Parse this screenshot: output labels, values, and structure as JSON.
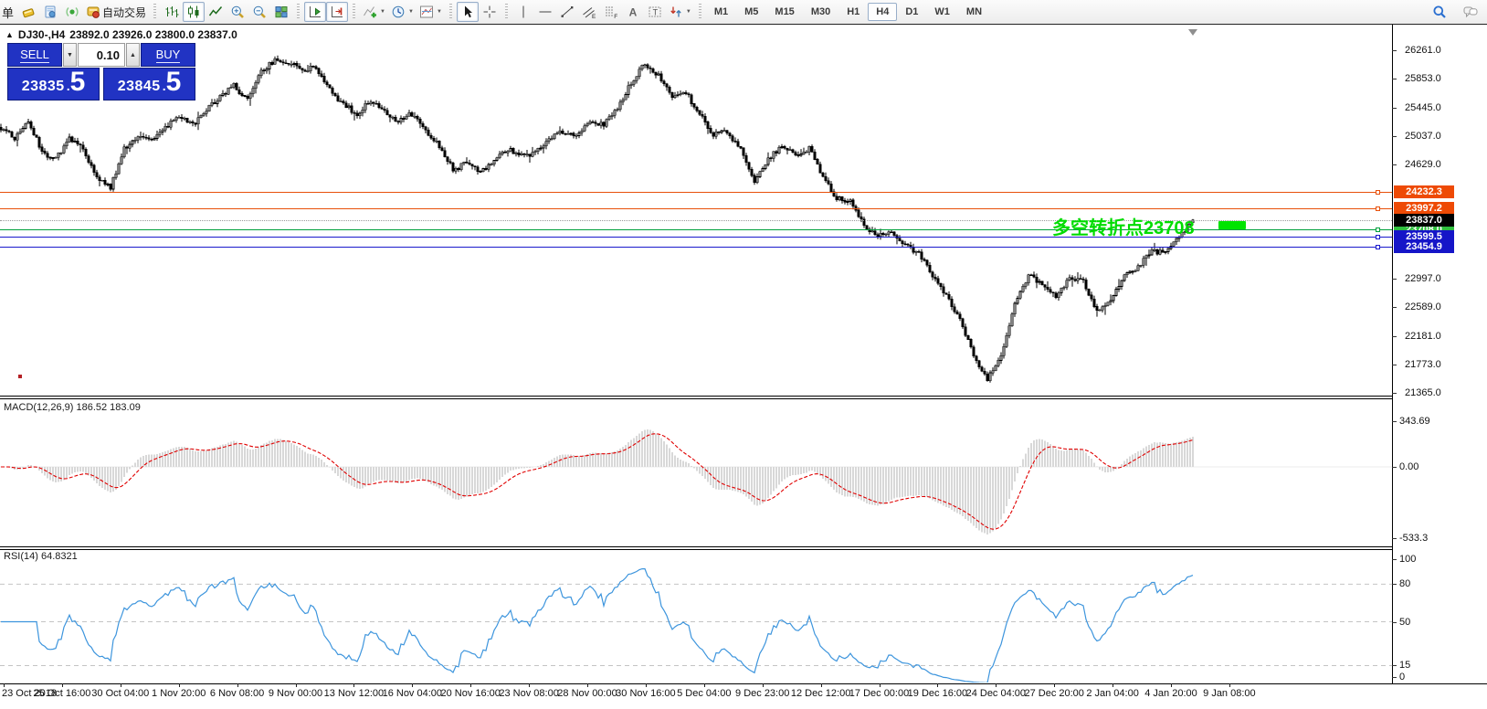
{
  "toolbar": {
    "partial_label": "单",
    "groups": [
      {
        "items": [
          {
            "icon": "new-order-icon",
            "name": "new-order"
          },
          {
            "icon": "profile-icon",
            "name": "profile"
          },
          {
            "icon": "signal-icon",
            "name": "signals"
          },
          {
            "icon": "autotrade-icon",
            "name": "autotrading",
            "label": "自动交易"
          }
        ]
      },
      {
        "items": [
          {
            "icon": "bar-chart-icon",
            "name": "bar-chart"
          },
          {
            "icon": "candle-chart-icon",
            "name": "candle-chart",
            "pressed": true
          },
          {
            "icon": "line-chart-icon",
            "name": "line-chart"
          },
          {
            "icon": "zoom-in-icon",
            "name": "zoom-in"
          },
          {
            "icon": "zoom-out-icon",
            "name": "zoom-out"
          },
          {
            "icon": "tile-windows-icon",
            "name": "tile-windows"
          }
        ]
      },
      {
        "items": [
          {
            "icon": "auto-scroll-icon",
            "name": "auto-scroll",
            "pressed": true
          },
          {
            "icon": "chart-shift-icon",
            "name": "chart-shift",
            "pressed": true
          }
        ]
      },
      {
        "items": [
          {
            "icon": "add-indicator-icon",
            "name": "indicators-menu",
            "dd": true
          },
          {
            "icon": "period-icon",
            "name": "periods-menu",
            "dd": true
          },
          {
            "icon": "template-icon",
            "name": "templates-menu",
            "dd": true
          }
        ]
      },
      {
        "items": [
          {
            "icon": "cursor-icon",
            "name": "cursor-tool",
            "pressed": true
          },
          {
            "icon": "crosshair-icon",
            "name": "crosshair-tool"
          }
        ]
      },
      {
        "items": [
          {
            "icon": "vertical-line-icon",
            "name": "vertical-line-tool"
          },
          {
            "icon": "horizontal-line-icon",
            "name": "horizontal-line-tool"
          },
          {
            "icon": "trendline-icon",
            "name": "trendline-tool"
          },
          {
            "icon": "channel-icon",
            "name": "equidistant-channel-tool"
          },
          {
            "icon": "fibonacci-icon",
            "name": "fibonacci-tool"
          },
          {
            "icon": "text-icon",
            "name": "text-tool"
          },
          {
            "icon": "label-icon",
            "name": "text-label-tool"
          },
          {
            "icon": "arrows-icon",
            "name": "arrows-tool",
            "dd": true
          }
        ]
      }
    ],
    "timeframes": [
      {
        "label": "M1"
      },
      {
        "label": "M5"
      },
      {
        "label": "M15"
      },
      {
        "label": "M30"
      },
      {
        "label": "H1"
      },
      {
        "label": "H4",
        "active": true
      },
      {
        "label": "D1"
      },
      {
        "label": "W1"
      },
      {
        "label": "MN"
      }
    ],
    "right_icons": [
      {
        "icon": "search-icon",
        "name": "search-symbols"
      },
      {
        "icon": "chat-icon",
        "name": "community-chat"
      }
    ]
  },
  "chart": {
    "title": {
      "marker": "▲",
      "symbol": "DJ30-,H4",
      "ohlc": "23892.0 23926.0 23800.0 23837.0"
    },
    "trade_panel": {
      "sell_label": "SELL",
      "buy_label": "BUY",
      "volume": "0.10",
      "sell_price_main": "23835",
      "sell_price_dot": ".",
      "sell_price_big": "5",
      "buy_price_main": "23845",
      "buy_price_dot": ".",
      "buy_price_big": "5",
      "step_down": "▼",
      "step_up": "▲"
    },
    "annotation": {
      "text": "多空转折点23708",
      "color": "#00dc00",
      "block_color": "#00e400"
    },
    "price_axis_ticks": [
      "26261.0",
      "25853.0",
      "25445.0",
      "25037.0",
      "24629.0",
      "22997.0",
      "22589.0",
      "22181.0",
      "21773.0",
      "21365.0"
    ],
    "price_axis_tick_values": [
      26261.0,
      25853.0,
      25445.0,
      25037.0,
      24629.0,
      22997.0,
      22589.0,
      22181.0,
      21773.0,
      21365.0
    ],
    "partial_tick": {
      "label": "23405.0",
      "value": 23405.0
    },
    "hlines": [
      {
        "label": "24232.3",
        "value": 24232.3,
        "line": "#e8500a",
        "badge": "#ee4a05"
      },
      {
        "label": "23997.2",
        "value": 23997.2,
        "line": "#e8500a",
        "badge": "#ee4a05"
      },
      {
        "label": "23708.0",
        "value": 23708.0,
        "line": "#00a03c",
        "badge": "#2fbf3f"
      },
      {
        "label": "23599.5",
        "value": 23599.5,
        "line": "#1a1acc",
        "badge": "#1515c8"
      },
      {
        "label": "23454.9",
        "value": 23454.9,
        "line": "#1a1acc",
        "badge": "#1515c8"
      }
    ],
    "current_price": {
      "label": "23837.0",
      "value": 23837.0,
      "badge": "#000000"
    }
  },
  "macd": {
    "label": "MACD(12,26,9) 186.52 183.09",
    "axis": [
      {
        "label": "343.69",
        "value": 343.69
      },
      {
        "label": "0.00",
        "value": 0.0
      },
      {
        "label": "-533.3",
        "value": -533.3
      }
    ]
  },
  "rsi": {
    "label": "RSI(14) 64.8321",
    "axis": [
      {
        "label": "100",
        "value": 100
      },
      {
        "label": "80",
        "value": 80
      },
      {
        "label": "50",
        "value": 50
      },
      {
        "label": "15",
        "value": 15
      },
      {
        "label": "0",
        "value": 0
      }
    ],
    "levels": [
      80,
      50,
      15
    ]
  },
  "time_axis": {
    "labels": [
      "23 Oct 2018",
      "25 Oct 16:00",
      "30 Oct 04:00",
      "1 Nov 20:00",
      "6 Nov 08:00",
      "9 Nov 00:00",
      "13 Nov 12:00",
      "16 Nov 04:00",
      "20 Nov 16:00",
      "23 Nov 08:00",
      "28 Nov 00:00",
      "30 Nov 16:00",
      "5 Dec 04:00",
      "9 Dec 23:00",
      "12 Dec 12:00",
      "17 Dec 00:00",
      "19 Dec 16:00",
      "24 Dec 04:00",
      "27 Dec 20:00",
      "2 Jan 04:00",
      "4 Jan 20:00",
      "9 Jan 08:00"
    ]
  },
  "chart_data": [
    {
      "type": "candlestick",
      "symbol": "DJ30-",
      "timeframe": "H4",
      "current_bar": {
        "open": 23892.0,
        "high": 23926.0,
        "low": 23800.0,
        "close": 23837.0
      },
      "ylim": [
        21365.0,
        26261.0
      ],
      "x_ticks": [
        "23 Oct 2018",
        "25 Oct 16:00",
        "30 Oct 04:00",
        "1 Nov 20:00",
        "6 Nov 08:00",
        "9 Nov 00:00",
        "13 Nov 12:00",
        "16 Nov 04:00",
        "20 Nov 16:00",
        "23 Nov 08:00",
        "28 Nov 00:00",
        "30 Nov 16:00",
        "5 Dec 04:00",
        "9 Dec 23:00",
        "12 Dec 12:00",
        "17 Dec 00:00",
        "19 Dec 16:00",
        "24 Dec 04:00",
        "27 Dec 20:00",
        "2 Jan 04:00",
        "4 Jan 20:00",
        "9 Jan 08:00"
      ],
      "close_anchors": [
        25150,
        25000,
        25250,
        24800,
        24720,
        25000,
        24850,
        24450,
        24300,
        24850,
        25050,
        25000,
        25150,
        25320,
        25200,
        25400,
        25600,
        25750,
        25550,
        25950,
        26120,
        26080,
        25980,
        26020,
        25700,
        25480,
        25350,
        25550,
        25400,
        25250,
        25350,
        25100,
        24900,
        24550,
        24650,
        24500,
        24700,
        24850,
        24750,
        24800,
        25000,
        25100,
        25050,
        25250,
        25200,
        25450,
        25800,
        26080,
        25900,
        25600,
        25650,
        25350,
        25050,
        25100,
        24850,
        24400,
        24700,
        24900,
        24750,
        24850,
        24450,
        24150,
        24100,
        23750,
        23600,
        23650,
        23500,
        23350,
        23050,
        22750,
        22400,
        21900,
        21550,
        21900,
        22650,
        23050,
        22900,
        22750,
        23000,
        22950,
        22550,
        22700,
        23050,
        23150,
        23400,
        23350,
        23600,
        23837
      ],
      "levels": [
        24232.3,
        23997.2,
        23708.0,
        23599.5,
        23454.9
      ]
    },
    {
      "type": "line",
      "name": "MACD",
      "params": [
        12,
        26,
        9
      ],
      "current_values": [
        186.52,
        183.09
      ],
      "ylim": [
        -533.3,
        343.69
      ]
    },
    {
      "type": "line",
      "name": "RSI",
      "params": [
        14
      ],
      "current_value": 64.8321,
      "ylim": [
        0,
        100
      ],
      "levels": [
        80,
        50,
        15
      ]
    }
  ]
}
